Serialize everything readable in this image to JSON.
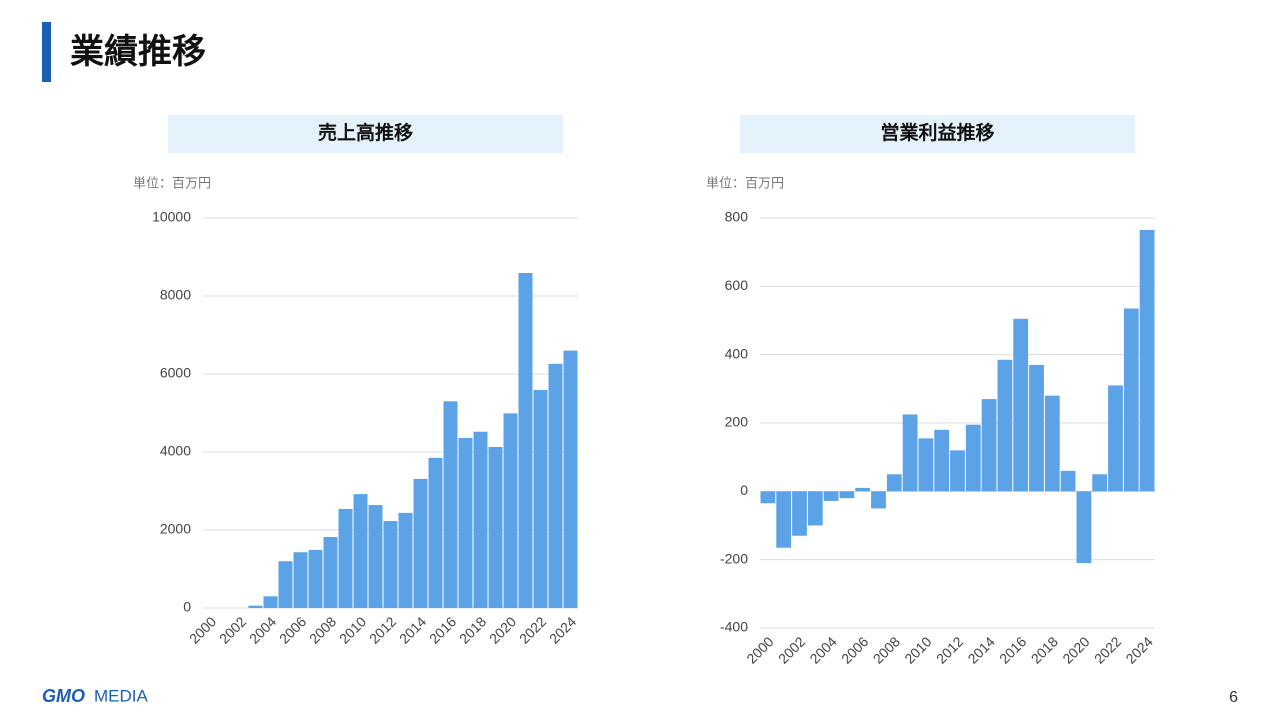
{
  "header": {
    "title": "業績推移"
  },
  "page_number": "6",
  "logo": [
    "GMO",
    "MEDIA"
  ],
  "chart_data": [
    {
      "type": "bar",
      "title": "売上高推移",
      "unit_label": "単位：百万円",
      "color": "#5ba3e6",
      "grid": true,
      "categories": [
        "2000",
        null,
        "2002",
        null,
        "2004",
        null,
        "2006",
        null,
        "2008",
        null,
        "2010",
        null,
        "2012",
        null,
        "2014",
        null,
        "2016",
        null,
        "2018",
        null,
        "2020",
        null,
        "2022",
        null,
        "2024"
      ],
      "values": [
        0,
        0,
        0,
        60,
        300,
        1200,
        1430,
        1490,
        1820,
        2540,
        2920,
        2640,
        2230,
        2440,
        3310,
        3850,
        5300,
        4360,
        4520,
        4130,
        4990,
        8590,
        5590,
        6260,
        6600
      ],
      "ylim": [
        0,
        10000
      ],
      "yticks": [
        0,
        2000,
        4000,
        6000,
        8000,
        10000
      ]
    },
    {
      "type": "bar",
      "title": "営業利益推移",
      "unit_label": "単位：百万円",
      "color": "#5ba3e6",
      "grid": true,
      "categories": [
        "2000",
        null,
        "2002",
        null,
        "2004",
        null,
        "2006",
        null,
        "2008",
        null,
        "2010",
        null,
        "2012",
        null,
        "2014",
        null,
        "2016",
        null,
        "2018",
        null,
        "2020",
        null,
        "2022",
        null,
        "2024"
      ],
      "values": [
        -35,
        -165,
        -130,
        -100,
        -28,
        -20,
        10,
        -50,
        50,
        225,
        155,
        180,
        120,
        195,
        270,
        385,
        505,
        370,
        280,
        60,
        -210,
        50,
        310,
        535,
        765
      ],
      "ylim": [
        -400,
        800
      ],
      "yticks": [
        -400,
        -200,
        0,
        200,
        400,
        600,
        800
      ]
    }
  ]
}
